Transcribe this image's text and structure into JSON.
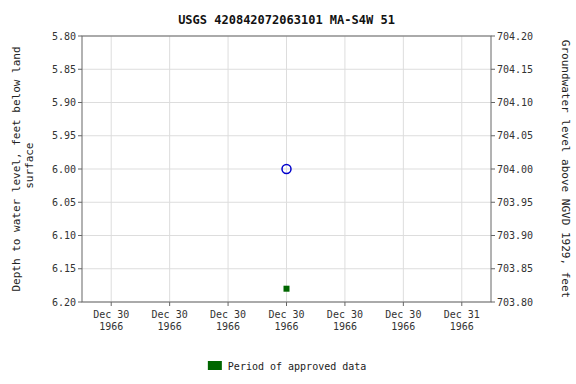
{
  "chart_data": {
    "type": "scatter",
    "title": "USGS 420842072063101 MA-S4W   51",
    "ylabel": "Depth to water level, feet below land\n surface",
    "y2label": "Groundwater level above NGVD 1929, feet",
    "categories": [
      "Dec 30\n1966",
      "Dec 30\n1966",
      "Dec 30\n1966",
      "Dec 30\n1966",
      "Dec 30\n1966",
      "Dec 30\n1966",
      "Dec 31\n1966"
    ],
    "series": [
      {
        "color": "#0000cc",
        "marker": "circle",
        "values": [
          null,
          null,
          null,
          6.0,
          null,
          null,
          null
        ]
      },
      {
        "name": "Period of approved data",
        "color": "#006600",
        "marker": "square",
        "values": [
          null,
          null,
          null,
          6.18,
          null,
          null,
          null
        ]
      }
    ],
    "ylim": [
      6.2,
      5.8
    ],
    "yticks": [
      {
        "value": 5.8,
        "label": "5.80"
      },
      {
        "value": 5.85,
        "label": "5.85"
      },
      {
        "value": 5.9,
        "label": "5.90"
      },
      {
        "value": 5.95,
        "label": "5.95"
      },
      {
        "value": 6.0,
        "label": "6.00"
      },
      {
        "value": 6.05,
        "label": "6.05"
      },
      {
        "value": 6.1,
        "label": "6.10"
      },
      {
        "value": 6.15,
        "label": "6.15"
      },
      {
        "value": 6.2,
        "label": "6.20"
      }
    ],
    "y2lim": [
      703.8,
      704.2
    ],
    "y2ticks": [
      {
        "value": 704.2,
        "label": "704.20"
      },
      {
        "value": 704.15,
        "label": "704.15"
      },
      {
        "value": 704.1,
        "label": "704.10"
      },
      {
        "value": 704.05,
        "label": "704.05"
      },
      {
        "value": 704.0,
        "label": "704.00"
      },
      {
        "value": 703.95,
        "label": "703.95"
      },
      {
        "value": 703.9,
        "label": "703.90"
      },
      {
        "value": 703.85,
        "label": "703.85"
      },
      {
        "value": 703.8,
        "label": "703.80"
      }
    ],
    "grid": true,
    "legend": "bottom"
  }
}
